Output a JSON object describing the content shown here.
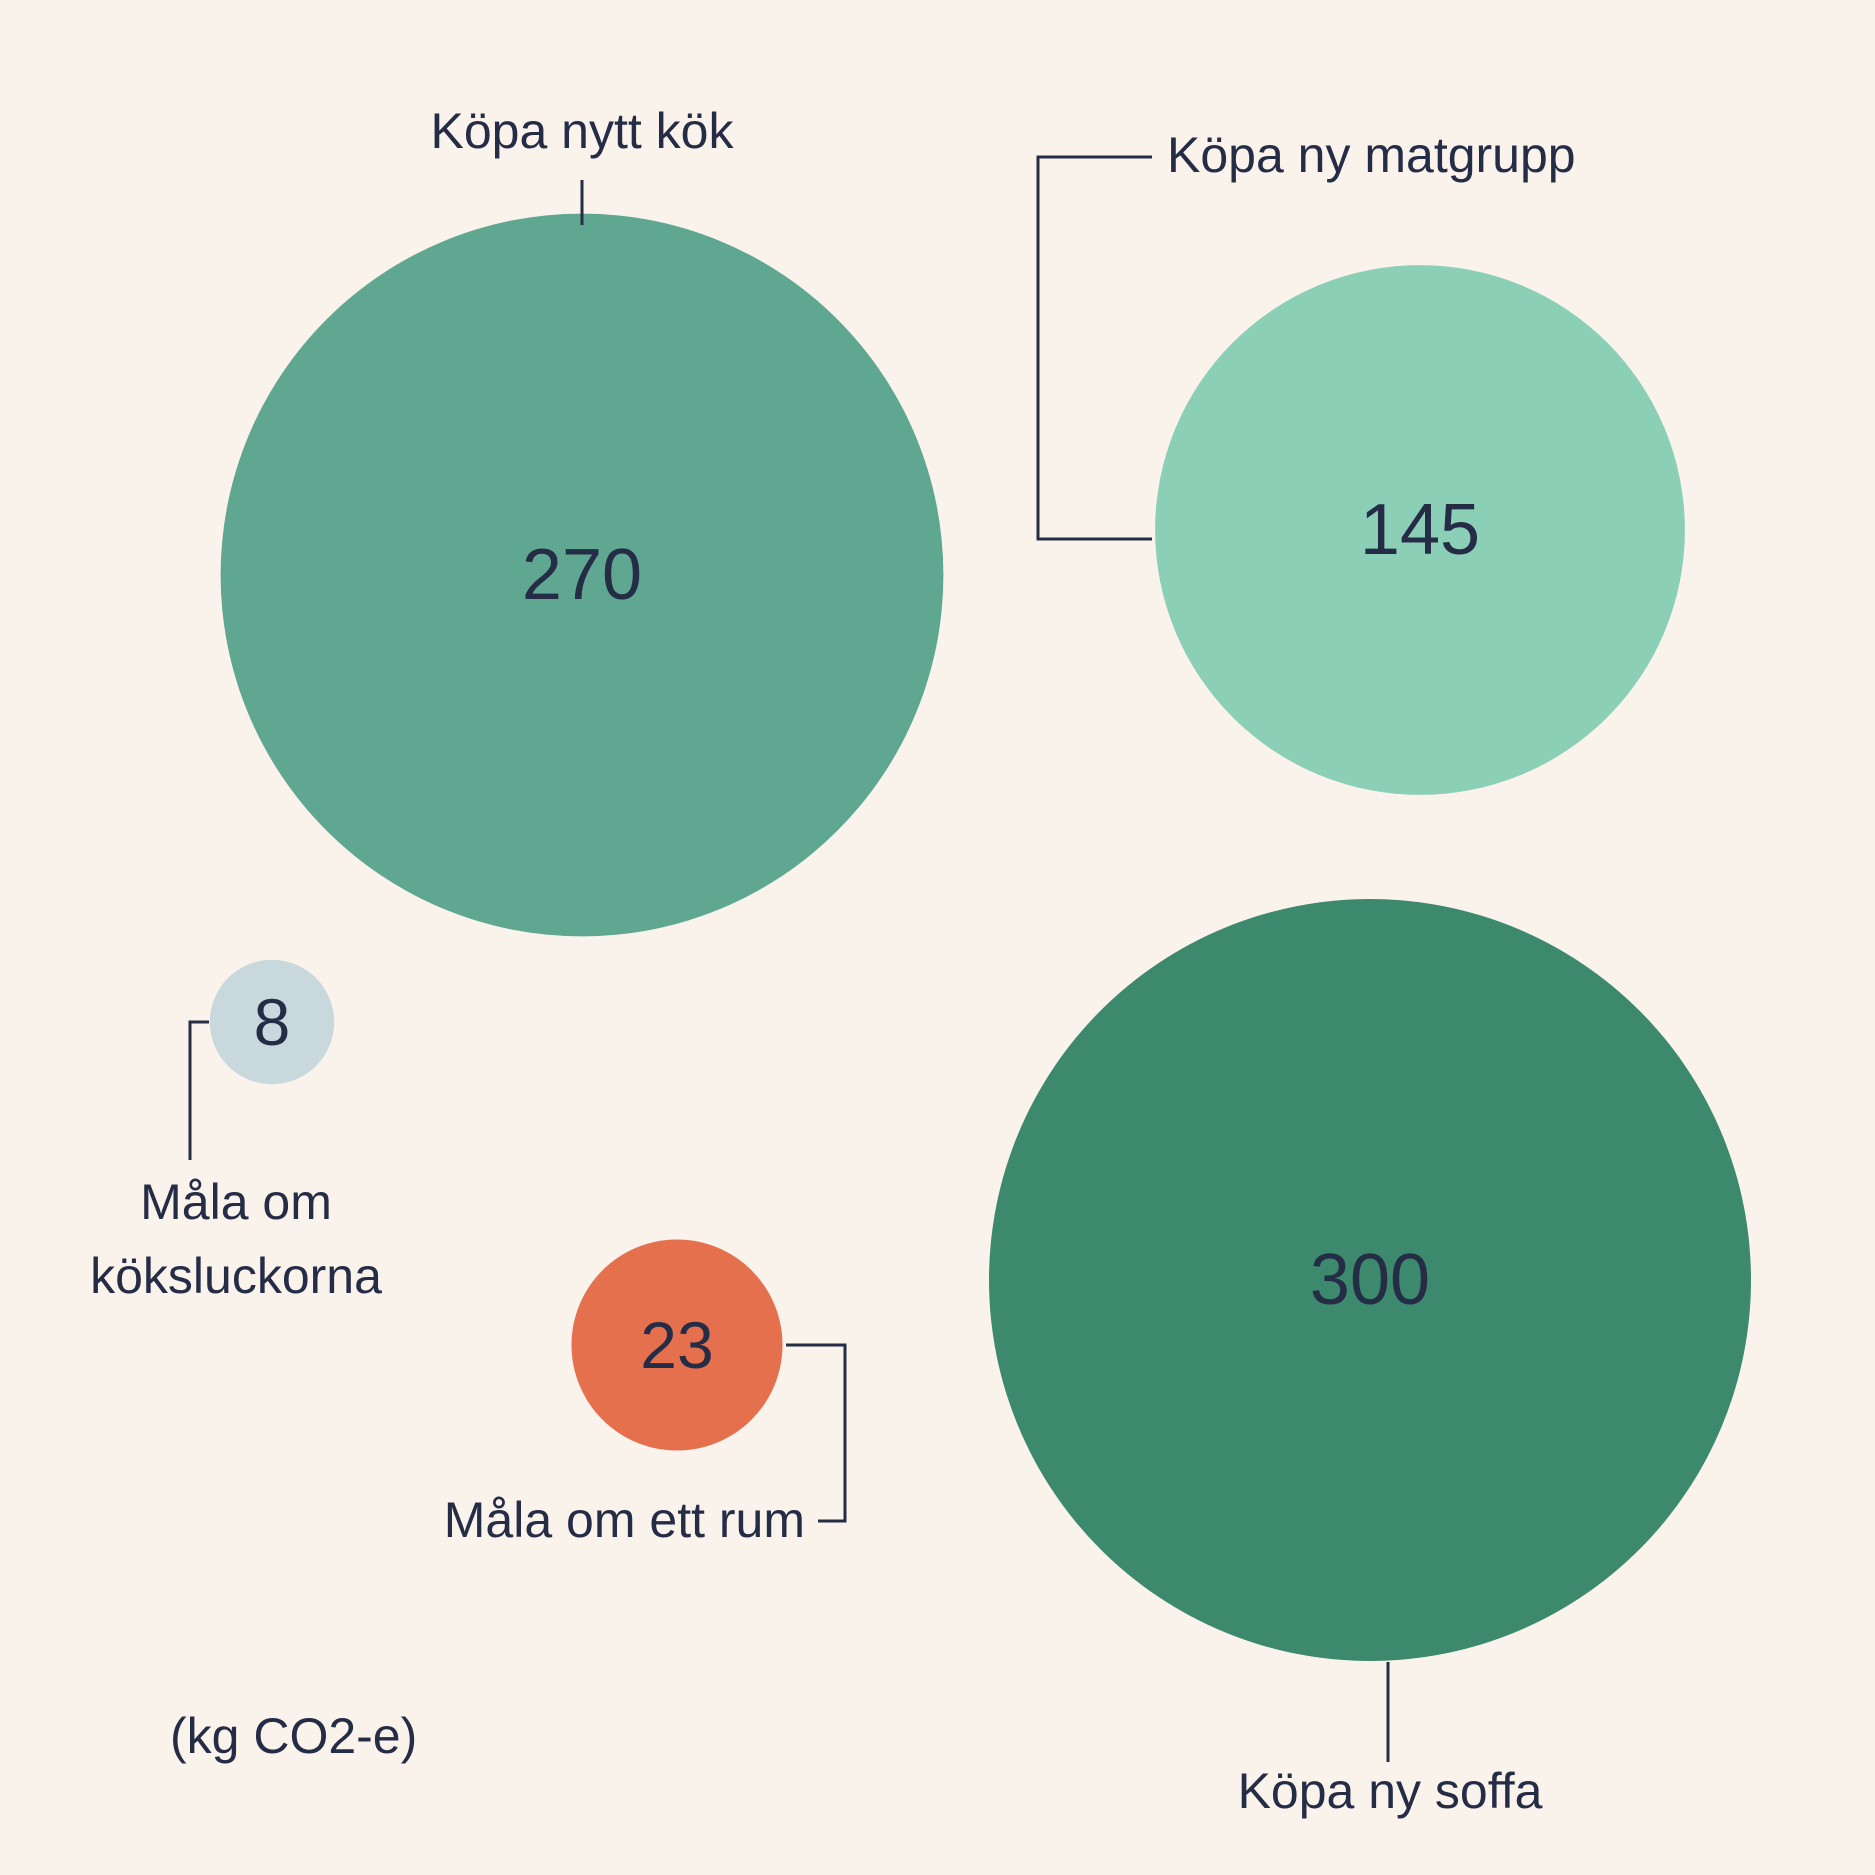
{
  "chart_data": {
    "type": "bubble",
    "unit_note": "(kg CO2-e)",
    "items": [
      {
        "label": [
          "Köpa nytt kök"
        ],
        "value": 270,
        "color": "#5fa791"
      },
      {
        "label": [
          "Köpa ny matgrupp"
        ],
        "value": 145,
        "color": "#8bcfb6"
      },
      {
        "label": [
          "Måla om",
          "köksluckorna"
        ],
        "value": 8,
        "color": "#c8d8dc"
      },
      {
        "label": [
          "Måla om ett rum"
        ],
        "value": 23,
        "color": "#e5704e"
      },
      {
        "label": [
          "Köpa ny soffa"
        ],
        "value": 300,
        "color": "#3d896d"
      }
    ]
  }
}
